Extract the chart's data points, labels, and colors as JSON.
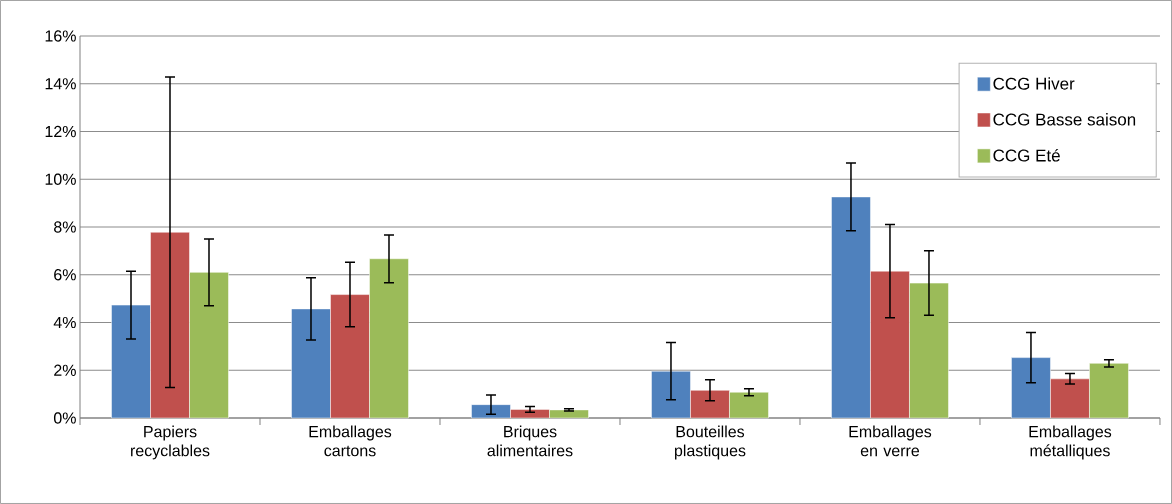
{
  "chart_data": {
    "type": "bar",
    "categories": [
      "Papiers recyclables",
      "Emballages cartons",
      "Briques alimentaires",
      "Bouteilles plastiques",
      "Emballages en verre",
      "Emballages métalliques"
    ],
    "series": [
      {
        "name": "CCG Hiver",
        "color": "#4f81bd",
        "values": [
          4.73,
          4.57,
          0.56,
          1.96,
          9.26,
          2.53
        ],
        "errors": [
          1.42,
          1.3,
          0.4,
          1.2,
          1.42,
          1.05
        ]
      },
      {
        "name": "CCG Basse saison",
        "color": "#c0504d",
        "values": [
          7.78,
          5.17,
          0.36,
          1.16,
          6.15,
          1.64
        ],
        "errors": [
          6.5,
          1.35,
          0.12,
          0.44,
          1.95,
          0.22
        ]
      },
      {
        "name": "CCG Eté",
        "color": "#9bbb59",
        "values": [
          6.1,
          6.67,
          0.34,
          1.08,
          5.65,
          2.29
        ],
        "errors": [
          1.4,
          1.0,
          0.05,
          0.15,
          1.35,
          0.15
        ]
      }
    ],
    "ylim": [
      0,
      16
    ],
    "yticks": [
      {
        "value": 0,
        "label": "0%"
      },
      {
        "value": 2,
        "label": "2%"
      },
      {
        "value": 4,
        "label": "4%"
      },
      {
        "value": 6,
        "label": "6%"
      },
      {
        "value": 8,
        "label": "8%"
      },
      {
        "value": 10,
        "label": "10%"
      },
      {
        "value": 12,
        "label": "12%"
      },
      {
        "value": 14,
        "label": "14%"
      },
      {
        "value": 16,
        "label": "16%"
      }
    ],
    "grid": "y",
    "legend": "top right"
  }
}
